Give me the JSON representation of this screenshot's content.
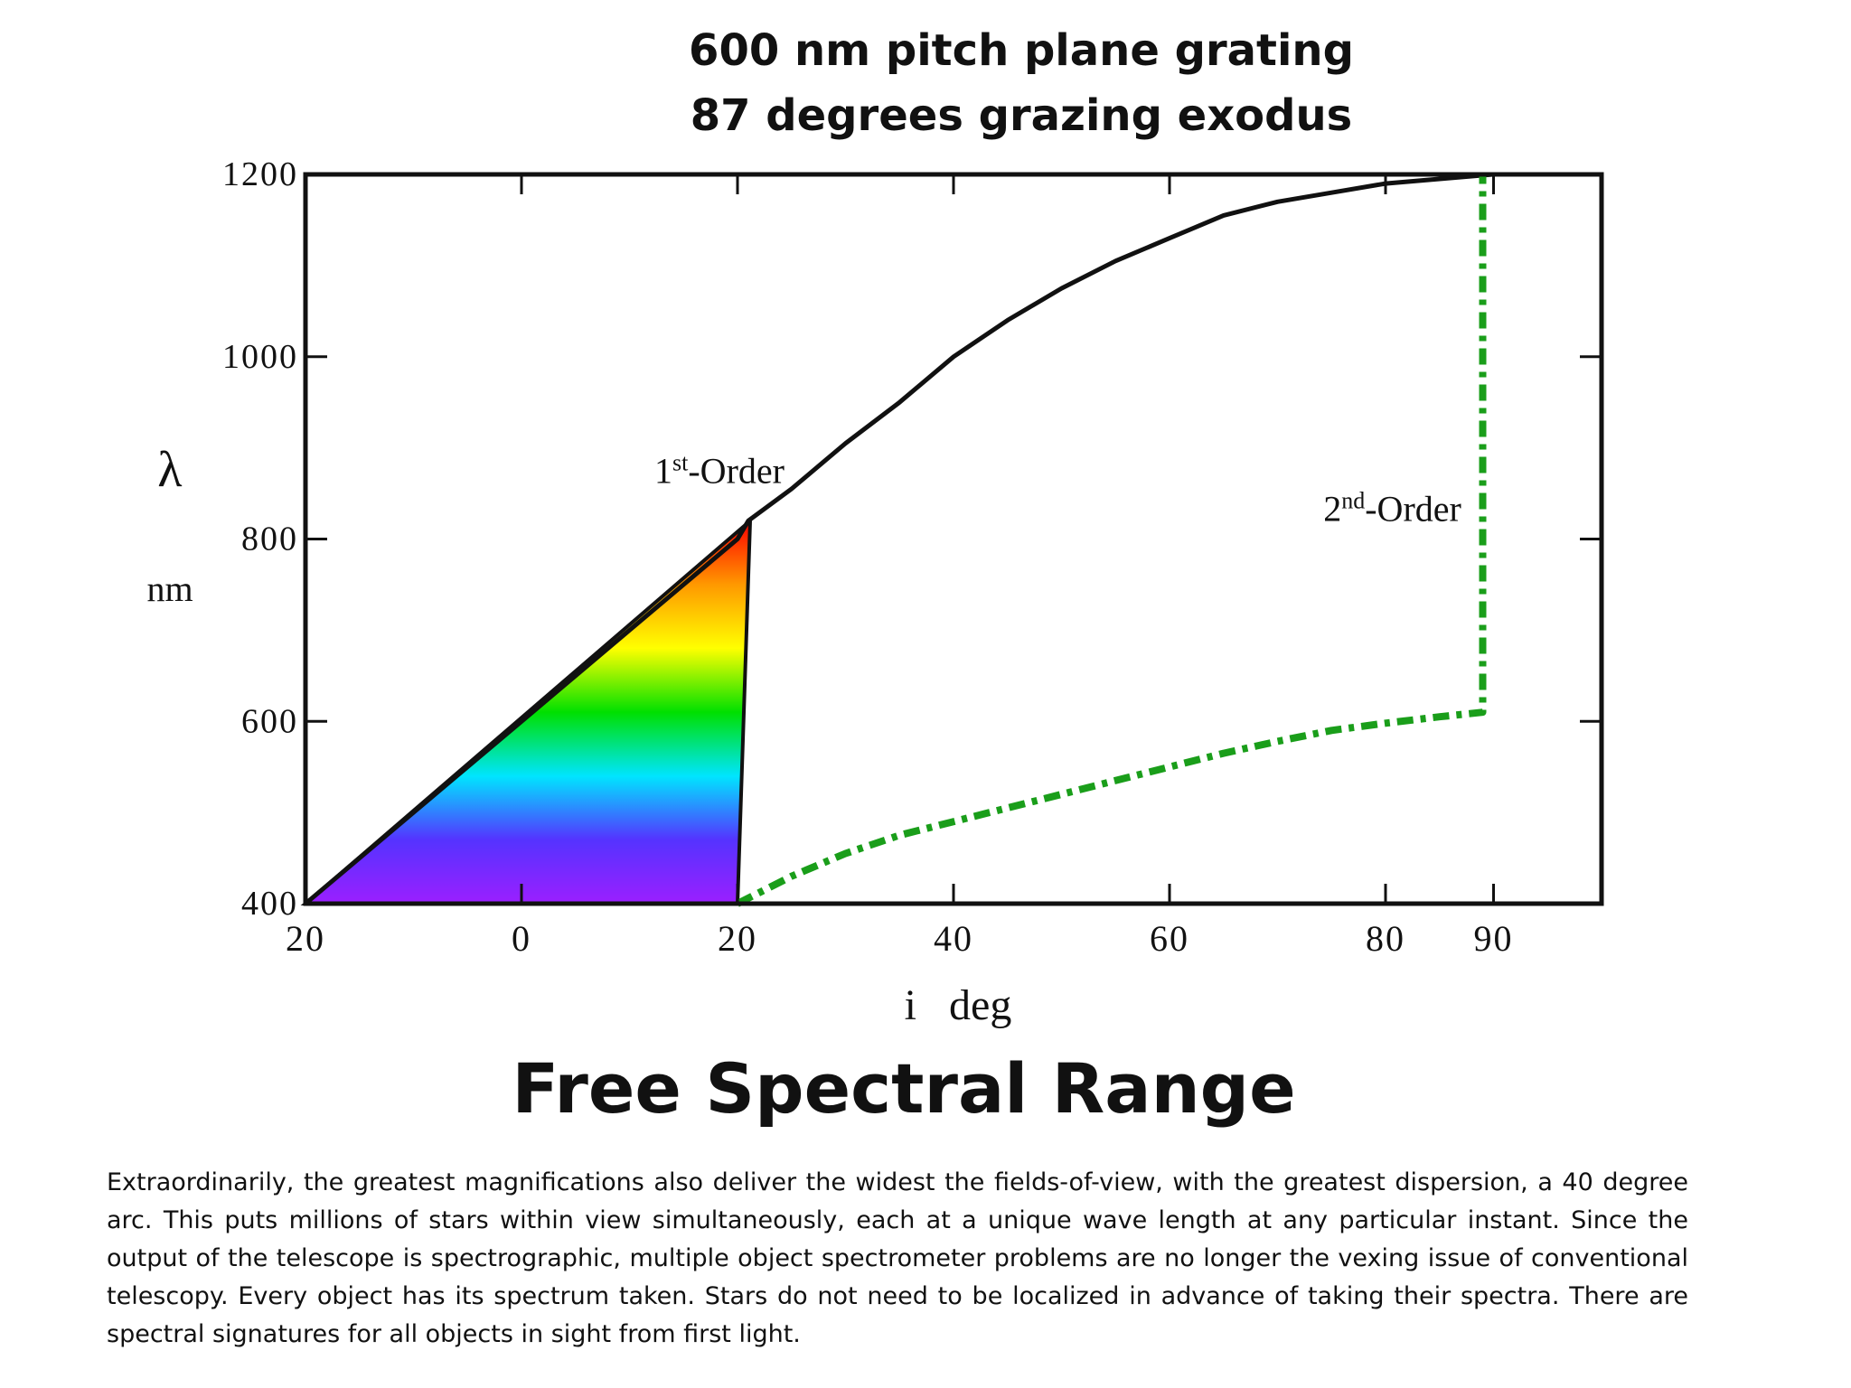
{
  "chart_data": {
    "type": "line",
    "title": "600 nm pitch plane grating",
    "subtitle": "87 degrees grazing exodus",
    "xlabel": "i   deg",
    "ylabel_symbol": "λ",
    "ylabel_unit": "nm",
    "x_ticks": [
      {
        "label": "20",
        "value": -20
      },
      {
        "label": "0",
        "value": 0
      },
      {
        "label": "20",
        "value": 20
      },
      {
        "label": "40",
        "value": 40
      },
      {
        "label": "60",
        "value": 60
      },
      {
        "label": "80",
        "value": 80
      },
      {
        "label": "90",
        "value": 90
      }
    ],
    "y_ticks": [
      400,
      600,
      800,
      1000,
      1200
    ],
    "xlim": [
      -20,
      100
    ],
    "ylim": [
      400,
      1200
    ],
    "grid": false,
    "series": [
      {
        "name": "1st-Order",
        "label_base": "1",
        "label_sup": "st",
        "label_rest": "-Order",
        "color": "#111111",
        "style": "solid",
        "x": [
          -20,
          -10,
          0,
          10,
          20,
          21,
          25,
          30,
          35,
          40,
          45,
          50,
          55,
          60,
          65,
          70,
          75,
          80,
          85,
          90
        ],
        "y": [
          400,
          500,
          600,
          700,
          800,
          820,
          855,
          905,
          950,
          1000,
          1040,
          1075,
          1105,
          1130,
          1155,
          1170,
          1180,
          1190,
          1195,
          1200
        ]
      },
      {
        "name": "2nd-Order",
        "label_base": "2",
        "label_sup": "nd",
        "label_rest": "-Order",
        "color": "#1a9e1a",
        "style": "dashed",
        "x": [
          20,
          25,
          30,
          35,
          40,
          45,
          50,
          55,
          60,
          65,
          70,
          75,
          80,
          85,
          89,
          89,
          89
        ],
        "y": [
          400,
          430,
          455,
          475,
          490,
          505,
          520,
          535,
          550,
          565,
          578,
          590,
          598,
          605,
          610,
          800,
          1200
        ]
      }
    ],
    "spectrum_band": {
      "x_start": -20,
      "x_end": 20,
      "y_min": 400,
      "y_max": 820,
      "colors": [
        "#9b1fff",
        "#5533ff",
        "#00e5ff",
        "#00e000",
        "#ffff00",
        "#ff9900",
        "#ff0000"
      ]
    }
  },
  "heading": "Free Spectral Range",
  "paragraph": "Extraordinarily, the greatest magnifications also deliver the widest the fields-of-view, with the greatest dispersion, a 40 degree arc. This puts millions of stars within view simultaneously, each at a unique wave length at any particular instant. Since the output of the telescope is spectrographic, multiple object spectrometer problems are no longer the vexing issue of conventional telescopy. Every object has its spectrum taken. Stars do not need to be localized in advance of taking their spectra. There are spectral signatures for all objects in sight from first light."
}
